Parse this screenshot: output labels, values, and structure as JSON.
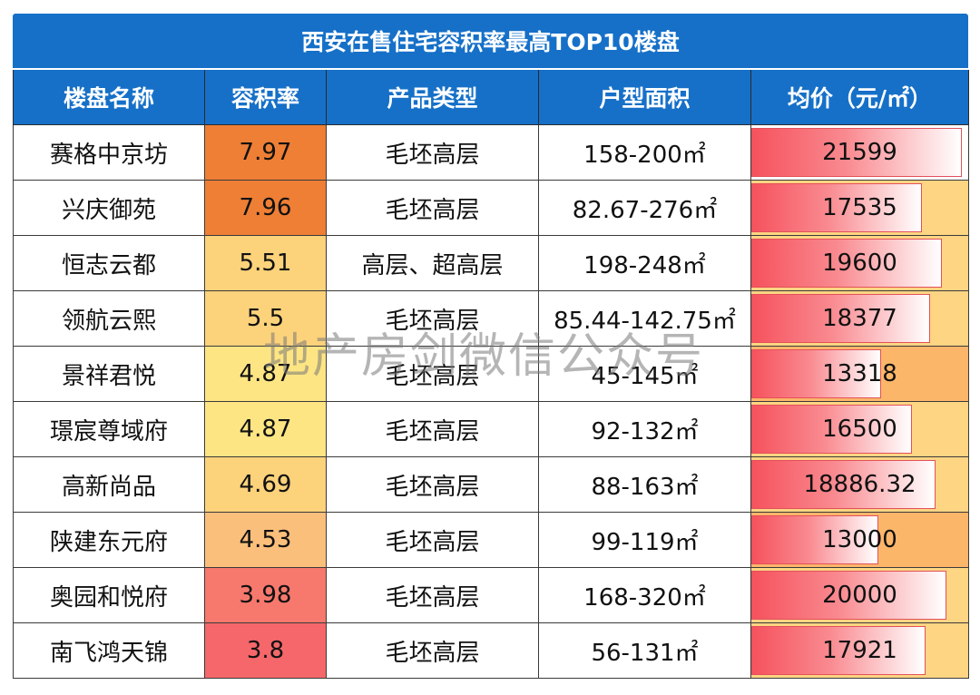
{
  "chart_data": {
    "type": "table",
    "title": "西安在售住宅容积率最高TOP10楼盘",
    "columns": [
      "楼盘名称",
      "容积率",
      "产品类型",
      "户型面积",
      "均价（元/㎡）"
    ],
    "rows": [
      {
        "name": "赛格中京坊",
        "far": "7.97",
        "type": "毛坯高层",
        "area": "158-200㎡",
        "price": "21599",
        "price_value": 21599,
        "far_color": "#ee7f35",
        "row_bg": "#ffffff"
      },
      {
        "name": "兴庆御苑",
        "far": "7.96",
        "type": "毛坯高层",
        "area": "82.67-276㎡",
        "price": "17535",
        "price_value": 17535,
        "far_color": "#ee7f35",
        "row_bg": "#fdd583"
      },
      {
        "name": "恒志云都",
        "far": "5.51",
        "type": "高层、超高层",
        "area": "198-248㎡",
        "price": "19600",
        "price_value": 19600,
        "far_color": "#fcd27b",
        "row_bg": "#fdd583"
      },
      {
        "name": "领航云熙",
        "far": "5.5",
        "type": "毛坯高层",
        "area": "85.44-142.75㎡",
        "price": "18377",
        "price_value": 18377,
        "far_color": "#fcd27b",
        "row_bg": "#fdd583"
      },
      {
        "name": "景祥君悦",
        "far": "4.87",
        "type": "毛坯高层",
        "area": "45-145㎡",
        "price": "13318",
        "price_value": 13318,
        "far_color": "#fde584",
        "row_bg": "#fcb66a"
      },
      {
        "name": "璟宸尊域府",
        "far": "4.87",
        "type": "毛坯高层",
        "area": "92-132㎡",
        "price": "16500",
        "price_value": 16500,
        "far_color": "#fde584",
        "row_bg": "#fdd583"
      },
      {
        "name": "高新尚品",
        "far": "4.69",
        "type": "毛坯高层",
        "area": "88-163㎡",
        "price": "18886.32",
        "price_value": 18886.32,
        "far_color": "#fcd27b",
        "row_bg": "#fdd583"
      },
      {
        "name": "陕建东元府",
        "far": "4.53",
        "type": "毛坯高层",
        "area": "99-119㎡",
        "price": "13000",
        "price_value": 13000,
        "far_color": "#fbbf7c",
        "row_bg": "#fcb66a"
      },
      {
        "name": "奥园和悦府",
        "far": "3.98",
        "type": "毛坯高层",
        "area": "168-320㎡",
        "price": "20000",
        "price_value": 20000,
        "far_color": "#f7786c",
        "row_bg": "#fdd583"
      },
      {
        "name": "南飞鸿天锦",
        "far": "3.8",
        "type": "毛坯高层",
        "area": "56-131㎡",
        "price": "17921",
        "price_value": 17921,
        "far_color": "#f5676a",
        "row_bg": "#fdd583"
      }
    ],
    "price_max": 21599
  },
  "watermark": "地产房剑微信公众号"
}
